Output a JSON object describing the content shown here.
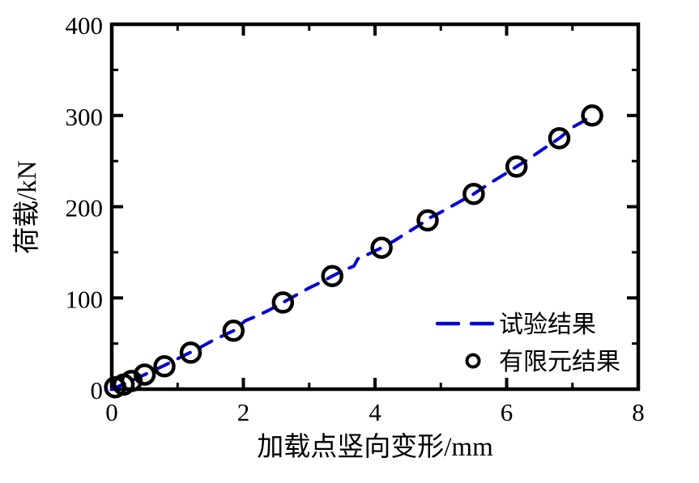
{
  "window": {
    "background": "#ffffff"
  },
  "chart_data": {
    "type": "line",
    "title": "",
    "xlabel": "加载点竖向变形/mm",
    "ylabel": "荷载/kN",
    "xlim": [
      0,
      8
    ],
    "ylim": [
      0,
      400
    ],
    "x_major_ticks": [
      0,
      2,
      4,
      6,
      8
    ],
    "x_minor_ticks": [
      1,
      3,
      5,
      7
    ],
    "y_major_ticks": [
      0,
      100,
      200,
      300,
      400
    ],
    "y_minor_ticks": [
      50,
      150,
      250,
      350
    ],
    "grid": false,
    "axis_color": "#000000",
    "tick_direction": "in",
    "legend_position": "inside-lower-right",
    "legend_border": false,
    "series": [
      {
        "name": "试验结果",
        "type": "line",
        "style": "dashed",
        "color": "#0000d2",
        "points": [
          [
            0,
            0
          ],
          [
            0.1,
            3
          ],
          [
            0.22,
            6.5
          ],
          [
            0.35,
            11
          ],
          [
            0.5,
            16
          ],
          [
            0.65,
            21
          ],
          [
            0.8,
            26
          ],
          [
            0.95,
            31.5
          ],
          [
            1.1,
            37
          ],
          [
            1.3,
            44
          ],
          [
            1.5,
            52
          ],
          [
            1.7,
            59
          ],
          [
            1.85,
            64
          ],
          [
            1.95,
            70
          ],
          [
            2.03,
            75
          ],
          [
            2.2,
            80
          ],
          [
            2.4,
            87
          ],
          [
            2.6,
            95
          ],
          [
            2.8,
            103
          ],
          [
            3.0,
            111
          ],
          [
            3.2,
            118
          ],
          [
            3.35,
            124
          ],
          [
            3.55,
            131
          ],
          [
            3.68,
            135
          ],
          [
            3.74,
            143
          ],
          [
            3.9,
            148
          ],
          [
            4.1,
            155
          ],
          [
            4.3,
            163
          ],
          [
            4.5,
            172
          ],
          [
            4.7,
            181
          ],
          [
            4.78,
            186
          ],
          [
            5.0,
            194
          ],
          [
            5.25,
            204
          ],
          [
            5.5,
            214
          ],
          [
            5.75,
            226
          ],
          [
            6.0,
            237
          ],
          [
            6.15,
            244
          ],
          [
            6.35,
            253
          ],
          [
            6.55,
            263
          ],
          [
            6.8,
            275
          ],
          [
            7.0,
            287
          ],
          [
            7.15,
            293
          ],
          [
            7.28,
            299
          ]
        ]
      },
      {
        "name": "有限元结果",
        "type": "scatter",
        "marker": "open-circle",
        "color": "#000000",
        "points": [
          [
            0.05,
            2
          ],
          [
            0.18,
            5
          ],
          [
            0.3,
            9
          ],
          [
            0.5,
            16
          ],
          [
            0.8,
            25
          ],
          [
            1.2,
            40
          ],
          [
            1.85,
            64
          ],
          [
            2.6,
            95
          ],
          [
            3.35,
            124
          ],
          [
            4.1,
            155
          ],
          [
            4.8,
            185
          ],
          [
            5.5,
            214
          ],
          [
            6.15,
            244
          ],
          [
            6.8,
            275
          ],
          [
            7.3,
            300
          ]
        ]
      }
    ]
  }
}
